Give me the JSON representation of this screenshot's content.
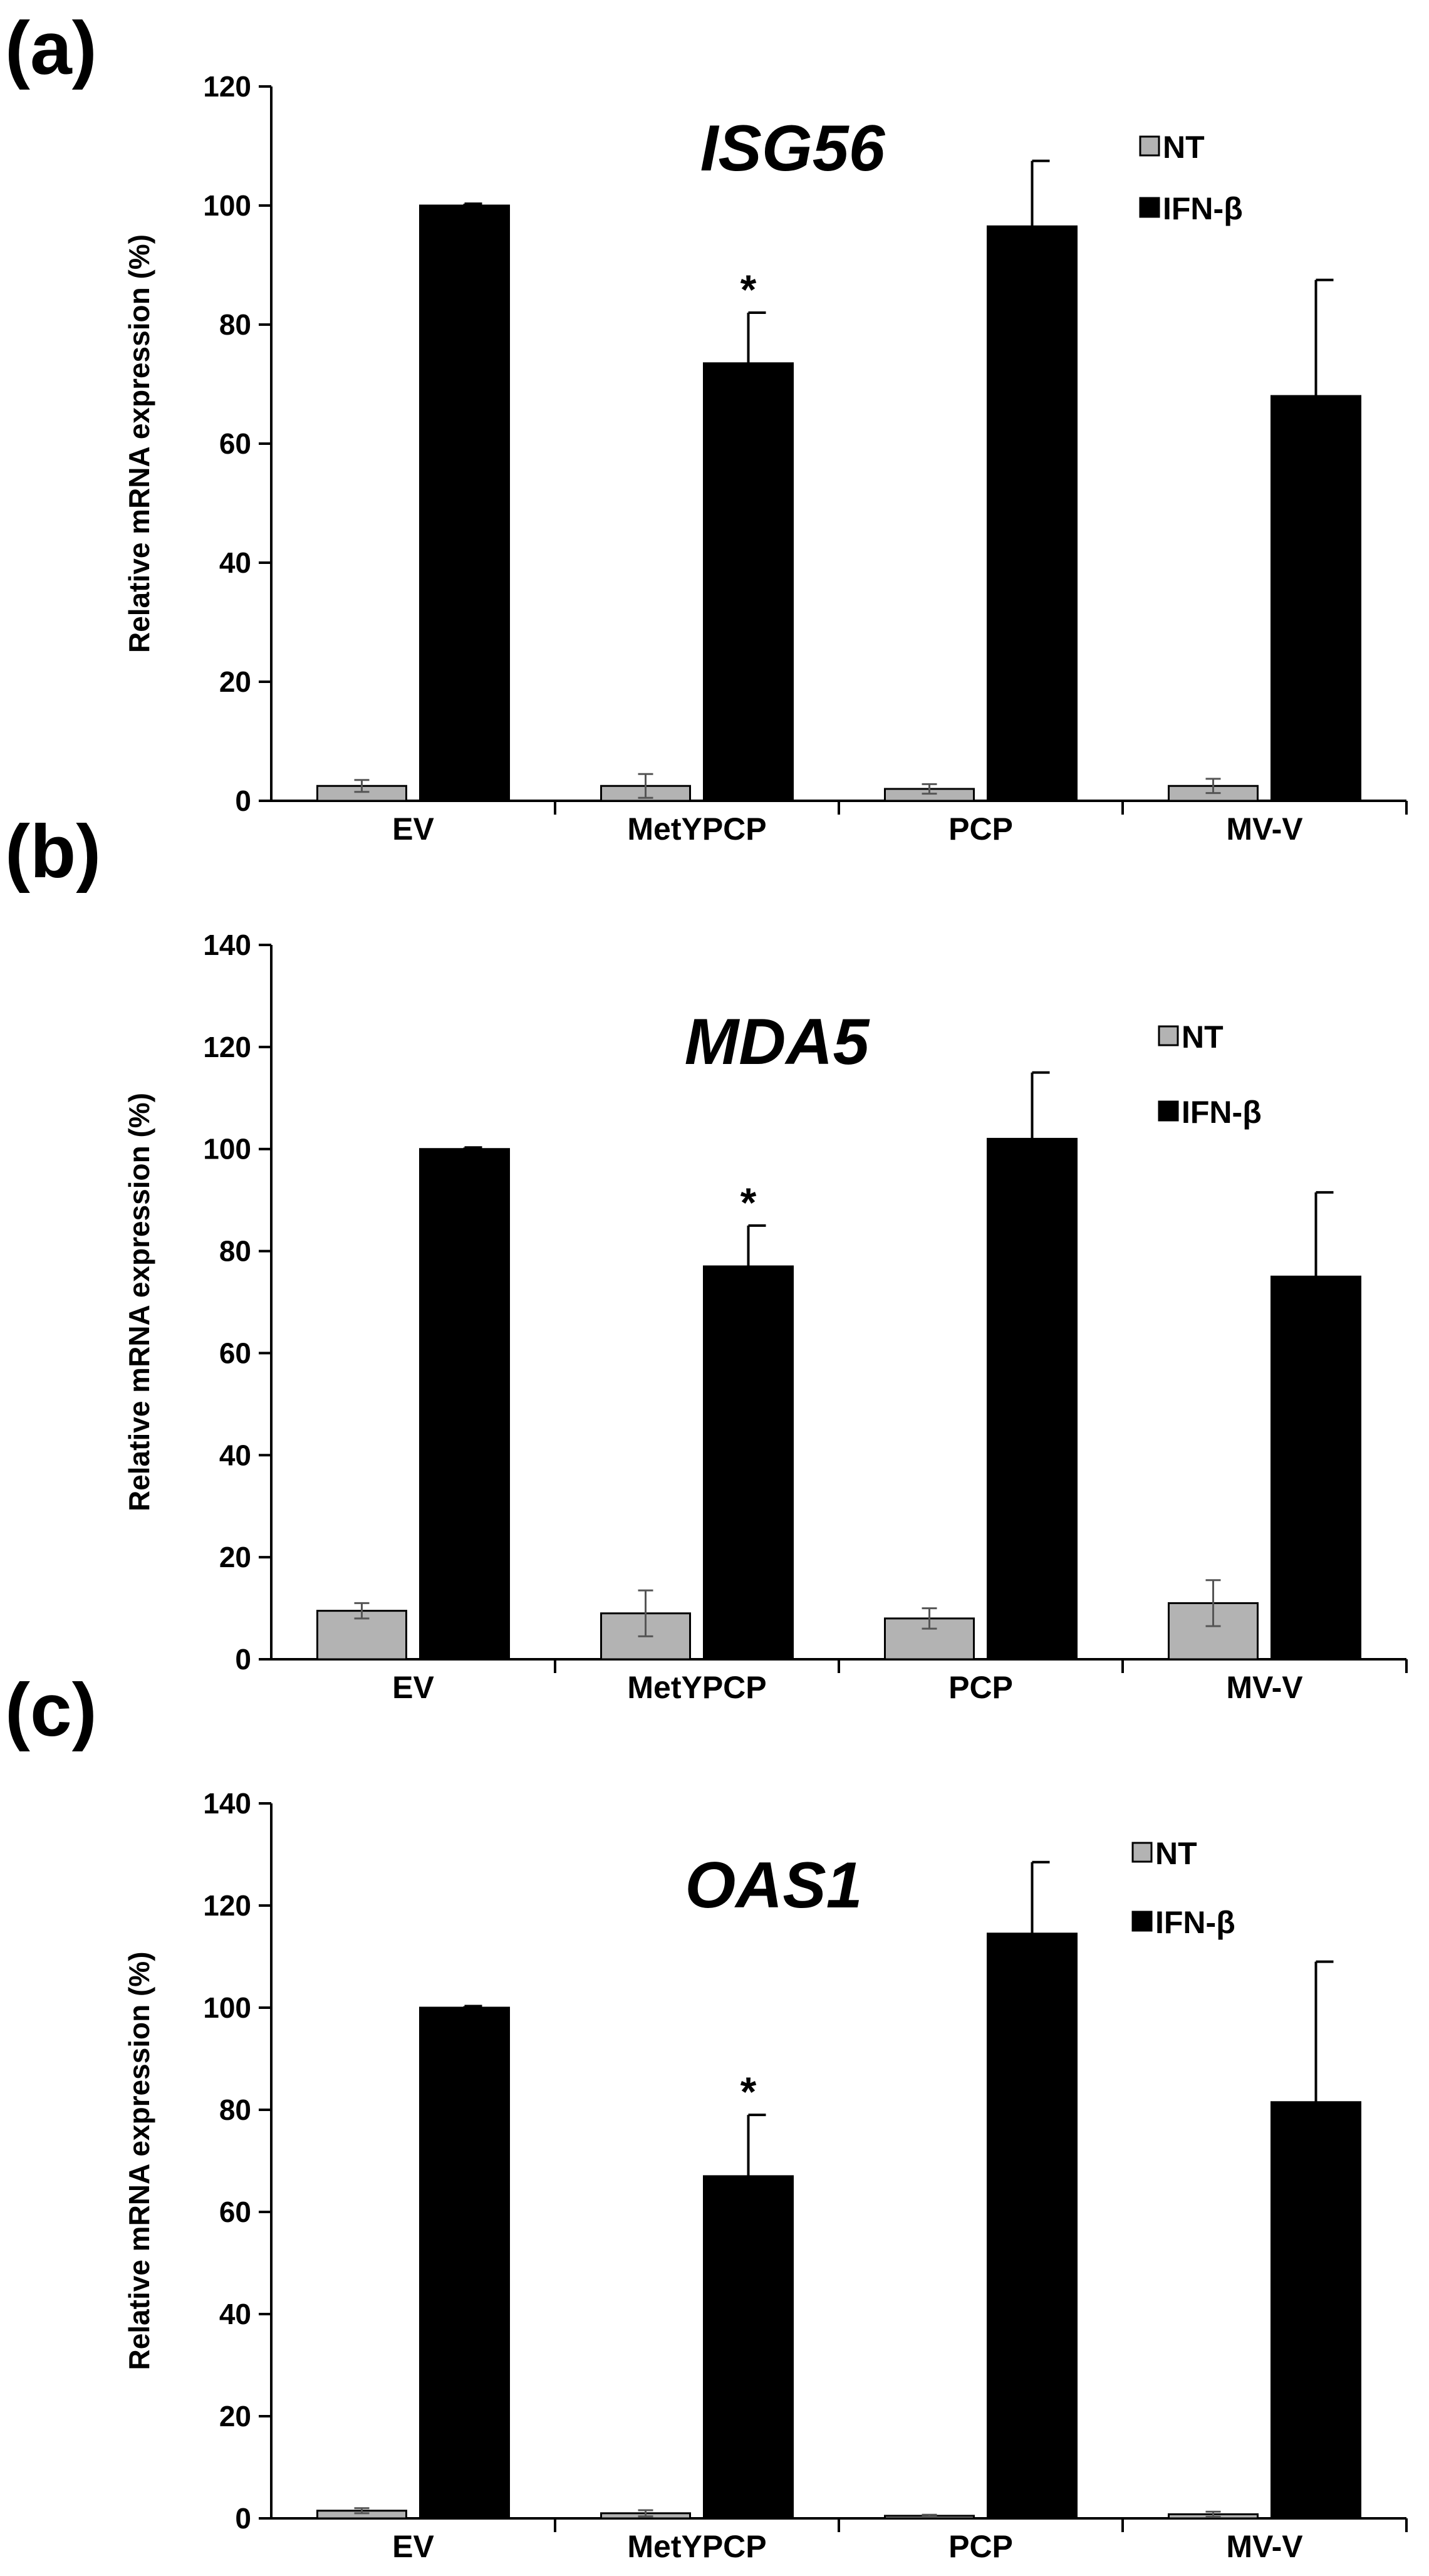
{
  "colors": {
    "nt": "#b3b3b3",
    "ifn": "#000000",
    "axis": "#000000",
    "bar_stroke": "#000000"
  },
  "chart_data": [
    {
      "panel": "(a)",
      "type": "bar",
      "title": "ISG56",
      "ylabel": "Relative mRNA expression (%)",
      "xlabel": "",
      "ylim": [
        0,
        120
      ],
      "yticks": [
        0,
        20,
        40,
        60,
        80,
        100,
        120
      ],
      "categories": [
        "EV",
        "MetYPCP",
        "PCP",
        "MV-V"
      ],
      "legend_position": "top-right",
      "series": [
        {
          "name": "NT",
          "values": [
            2.5,
            2.5,
            2,
            2.5
          ],
          "errors": [
            1,
            2,
            0.8,
            1.2
          ]
        },
        {
          "name": "IFN-β",
          "values": [
            100,
            73.5,
            96.5,
            68
          ],
          "errors": [
            0.3,
            8.5,
            11,
            19.5
          ]
        }
      ],
      "annotations": [
        {
          "text": "*",
          "category": "MetYPCP",
          "series": "IFN-β"
        }
      ]
    },
    {
      "panel": "(b)",
      "type": "bar",
      "title": "MDA5",
      "ylabel": "Relative mRNA expression (%)",
      "xlabel": "",
      "ylim": [
        0,
        140
      ],
      "yticks": [
        0,
        20,
        40,
        60,
        80,
        100,
        120,
        140
      ],
      "categories": [
        "EV",
        "MetYPCP",
        "PCP",
        "MV-V"
      ],
      "legend_position": "top-right",
      "series": [
        {
          "name": "NT",
          "values": [
            9.5,
            9,
            8,
            11
          ],
          "errors": [
            1.5,
            4.5,
            2,
            4.5
          ]
        },
        {
          "name": "IFN-β",
          "values": [
            100,
            77,
            102,
            75
          ],
          "errors": [
            0.3,
            8,
            13,
            16.5
          ]
        }
      ],
      "annotations": [
        {
          "text": "*",
          "category": "MetYPCP",
          "series": "IFN-β"
        }
      ]
    },
    {
      "panel": "(c)",
      "type": "bar",
      "title": "OAS1",
      "ylabel": "Relative mRNA expression (%)",
      "xlabel": "",
      "ylim": [
        0,
        140
      ],
      "yticks": [
        0,
        20,
        40,
        60,
        80,
        100,
        120,
        140
      ],
      "categories": [
        "EV",
        "MetYPCP",
        "PCP",
        "MV-V"
      ],
      "legend_position": "top-right",
      "series": [
        {
          "name": "NT",
          "values": [
            1.5,
            1,
            0.5,
            0.8
          ],
          "errors": [
            0.5,
            0.6,
            0.2,
            0.5
          ]
        },
        {
          "name": "IFN-β",
          "values": [
            100,
            67,
            114.5,
            81.5
          ],
          "errors": [
            0.3,
            12,
            14,
            27.5
          ]
        }
      ],
      "annotations": [
        {
          "text": "*",
          "category": "MetYPCP",
          "series": "IFN-β"
        }
      ]
    }
  ]
}
